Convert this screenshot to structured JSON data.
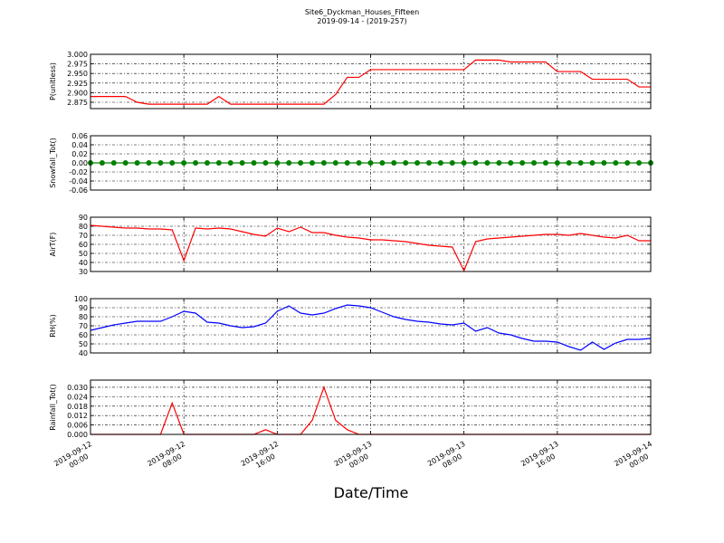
{
  "chart_data": [
    {
      "type": "line",
      "title": "Site6_Dyckman_Houses_Fifteen",
      "subtitle": "2019-09-14 - (2019-257)",
      "y_label": "P(unitless)",
      "xlim": [
        "2019-09-12 00:00",
        "2019-09-14 00:00"
      ],
      "xticks": [
        "2019-09-12 00:00",
        "2019-09-12 08:00",
        "2019-09-12 16:00",
        "2019-09-13 00:00",
        "2019-09-13 08:00",
        "2019-09-13 16:00",
        "2019-09-14 00:00"
      ],
      "ylim": [
        2.8585,
        3.0
      ],
      "yticks": [
        {
          "value": 2.875,
          "label": "2.875"
        },
        {
          "value": 2.9,
          "label": "2.900"
        },
        {
          "value": 2.925,
          "label": "2.925"
        },
        {
          "value": 2.95,
          "label": "2.950"
        },
        {
          "value": 2.975,
          "label": "2.975"
        },
        {
          "value": 3.0,
          "label": "3.000"
        }
      ],
      "grid": true,
      "color": "#ff0000",
      "marker": false,
      "x": [
        "2019-09-12 00:00",
        "2019-09-12 01:00",
        "2019-09-12 02:00",
        "2019-09-12 03:00",
        "2019-09-12 04:00",
        "2019-09-12 05:00",
        "2019-09-12 06:00",
        "2019-09-12 07:00",
        "2019-09-12 08:00",
        "2019-09-12 09:00",
        "2019-09-12 10:00",
        "2019-09-12 11:00",
        "2019-09-12 12:00",
        "2019-09-12 13:00",
        "2019-09-12 14:00",
        "2019-09-12 15:00",
        "2019-09-12 16:00",
        "2019-09-12 17:00",
        "2019-09-12 18:00",
        "2019-09-12 19:00",
        "2019-09-12 20:00",
        "2019-09-12 21:00",
        "2019-09-12 22:00",
        "2019-09-12 23:00",
        "2019-09-13 00:00",
        "2019-09-13 01:00",
        "2019-09-13 02:00",
        "2019-09-13 03:00",
        "2019-09-13 04:00",
        "2019-09-13 05:00",
        "2019-09-13 06:00",
        "2019-09-13 07:00",
        "2019-09-13 08:00",
        "2019-09-13 09:00",
        "2019-09-13 10:00",
        "2019-09-13 11:00",
        "2019-09-13 12:00",
        "2019-09-13 13:00",
        "2019-09-13 14:00",
        "2019-09-13 15:00",
        "2019-09-13 16:00",
        "2019-09-13 17:00",
        "2019-09-13 18:00",
        "2019-09-13 19:00",
        "2019-09-13 20:00",
        "2019-09-13 21:00",
        "2019-09-13 22:00",
        "2019-09-13 23:00",
        "2019-09-14 00:00"
      ],
      "values": [
        2.89,
        2.89,
        2.89,
        2.89,
        2.875,
        2.87,
        2.87,
        2.87,
        2.87,
        2.87,
        2.87,
        2.89,
        2.87,
        2.87,
        2.87,
        2.87,
        2.87,
        2.87,
        2.87,
        2.87,
        2.87,
        2.895,
        2.94,
        2.94,
        2.96,
        2.96,
        2.96,
        2.96,
        2.96,
        2.96,
        2.96,
        2.96,
        2.96,
        2.985,
        2.985,
        2.985,
        2.98,
        2.98,
        2.98,
        2.98,
        2.955,
        2.955,
        2.955,
        2.935,
        2.935,
        2.935,
        2.935,
        2.915,
        2.915
      ]
    },
    {
      "type": "line",
      "y_label": "Snowfall_Tot()",
      "xlim": [
        "2019-09-12 00:00",
        "2019-09-14 00:00"
      ],
      "xticks": [
        "2019-09-12 00:00",
        "2019-09-12 08:00",
        "2019-09-12 16:00",
        "2019-09-13 00:00",
        "2019-09-13 08:00",
        "2019-09-13 16:00",
        "2019-09-14 00:00"
      ],
      "ylim": [
        -0.06,
        0.06
      ],
      "yticks": [
        {
          "value": -0.06,
          "label": "-0.06"
        },
        {
          "value": -0.04,
          "label": "-0.04"
        },
        {
          "value": -0.02,
          "label": "-0.02"
        },
        {
          "value": 0,
          "label": "0.00"
        },
        {
          "value": 0.02,
          "label": "0.02"
        },
        {
          "value": 0.04,
          "label": "0.04"
        },
        {
          "value": 0.06,
          "label": "0.06"
        }
      ],
      "grid": true,
      "color": "#008000",
      "marker": true,
      "x": [
        "2019-09-12 00:00",
        "2019-09-12 01:00",
        "2019-09-12 02:00",
        "2019-09-12 03:00",
        "2019-09-12 04:00",
        "2019-09-12 05:00",
        "2019-09-12 06:00",
        "2019-09-12 07:00",
        "2019-09-12 08:00",
        "2019-09-12 09:00",
        "2019-09-12 10:00",
        "2019-09-12 11:00",
        "2019-09-12 12:00",
        "2019-09-12 13:00",
        "2019-09-12 14:00",
        "2019-09-12 15:00",
        "2019-09-12 16:00",
        "2019-09-12 17:00",
        "2019-09-12 18:00",
        "2019-09-12 19:00",
        "2019-09-12 20:00",
        "2019-09-12 21:00",
        "2019-09-12 22:00",
        "2019-09-12 23:00",
        "2019-09-13 00:00",
        "2019-09-13 01:00",
        "2019-09-13 02:00",
        "2019-09-13 03:00",
        "2019-09-13 04:00",
        "2019-09-13 05:00",
        "2019-09-13 06:00",
        "2019-09-13 07:00",
        "2019-09-13 08:00",
        "2019-09-13 09:00",
        "2019-09-13 10:00",
        "2019-09-13 11:00",
        "2019-09-13 12:00",
        "2019-09-13 13:00",
        "2019-09-13 14:00",
        "2019-09-13 15:00",
        "2019-09-13 16:00",
        "2019-09-13 17:00",
        "2019-09-13 18:00",
        "2019-09-13 19:00",
        "2019-09-13 20:00",
        "2019-09-13 21:00",
        "2019-09-13 22:00",
        "2019-09-13 23:00",
        "2019-09-14 00:00"
      ],
      "values": [
        0,
        0,
        0,
        0,
        0,
        0,
        0,
        0,
        0,
        0,
        0,
        0,
        0,
        0,
        0,
        0,
        0,
        0,
        0,
        0,
        0,
        0,
        0,
        0,
        0,
        0,
        0,
        0,
        0,
        0,
        0,
        0,
        0,
        0,
        0,
        0,
        0,
        0,
        0,
        0,
        0,
        0,
        0,
        0,
        0,
        0,
        0,
        0,
        0
      ]
    },
    {
      "type": "line",
      "y_label": "AirT(F)",
      "xlim": [
        "2019-09-12 00:00",
        "2019-09-14 00:00"
      ],
      "xticks": [
        "2019-09-12 00:00",
        "2019-09-12 08:00",
        "2019-09-12 16:00",
        "2019-09-13 00:00",
        "2019-09-13 08:00",
        "2019-09-13 16:00",
        "2019-09-14 00:00"
      ],
      "ylim": [
        30,
        90
      ],
      "yticks": [
        30,
        40,
        50,
        60,
        70,
        80,
        90
      ],
      "grid": true,
      "color": "#ff0000",
      "marker": false,
      "x": [
        "2019-09-12 00:00",
        "2019-09-12 01:00",
        "2019-09-12 02:00",
        "2019-09-12 03:00",
        "2019-09-12 04:00",
        "2019-09-12 05:00",
        "2019-09-12 06:00",
        "2019-09-12 07:00",
        "2019-09-12 08:00",
        "2019-09-12 09:00",
        "2019-09-12 10:00",
        "2019-09-12 11:00",
        "2019-09-12 12:00",
        "2019-09-12 13:00",
        "2019-09-12 14:00",
        "2019-09-12 15:00",
        "2019-09-12 16:00",
        "2019-09-12 17:00",
        "2019-09-12 18:00",
        "2019-09-12 19:00",
        "2019-09-12 20:00",
        "2019-09-12 21:00",
        "2019-09-12 22:00",
        "2019-09-12 23:00",
        "2019-09-13 00:00",
        "2019-09-13 01:00",
        "2019-09-13 02:00",
        "2019-09-13 03:00",
        "2019-09-13 04:00",
        "2019-09-13 05:00",
        "2019-09-13 06:00",
        "2019-09-13 07:00",
        "2019-09-13 08:00",
        "2019-09-13 09:00",
        "2019-09-13 10:00",
        "2019-09-13 11:00",
        "2019-09-13 12:00",
        "2019-09-13 13:00",
        "2019-09-13 14:00",
        "2019-09-13 15:00",
        "2019-09-13 16:00",
        "2019-09-13 17:00",
        "2019-09-13 18:00",
        "2019-09-13 19:00",
        "2019-09-13 20:00",
        "2019-09-13 21:00",
        "2019-09-13 22:00",
        "2019-09-13 23:00",
        "2019-09-14 00:00"
      ],
      "values": [
        81,
        80,
        79,
        78,
        78,
        77,
        77,
        76,
        42,
        78,
        77,
        78,
        77,
        74,
        71,
        69,
        78,
        74,
        79,
        73,
        73,
        70,
        68,
        67,
        65,
        65,
        64,
        63,
        61,
        59,
        58,
        57,
        31,
        63,
        66,
        67,
        68,
        69,
        70,
        71,
        71,
        70,
        72,
        70,
        68,
        67,
        70,
        64,
        64
      ]
    },
    {
      "type": "line",
      "y_label": "RH(%)",
      "xlim": [
        "2019-09-12 00:00",
        "2019-09-14 00:00"
      ],
      "xticks": [
        "2019-09-12 00:00",
        "2019-09-12 08:00",
        "2019-09-12 16:00",
        "2019-09-13 00:00",
        "2019-09-13 08:00",
        "2019-09-13 16:00",
        "2019-09-14 00:00"
      ],
      "ylim": [
        40,
        100
      ],
      "yticks": [
        40,
        50,
        60,
        70,
        80,
        90,
        100
      ],
      "grid": true,
      "color": "#0000ff",
      "marker": false,
      "x": [
        "2019-09-12 00:00",
        "2019-09-12 01:00",
        "2019-09-12 02:00",
        "2019-09-12 03:00",
        "2019-09-12 04:00",
        "2019-09-12 05:00",
        "2019-09-12 06:00",
        "2019-09-12 07:00",
        "2019-09-12 08:00",
        "2019-09-12 09:00",
        "2019-09-12 10:00",
        "2019-09-12 11:00",
        "2019-09-12 12:00",
        "2019-09-12 13:00",
        "2019-09-12 14:00",
        "2019-09-12 15:00",
        "2019-09-12 16:00",
        "2019-09-12 17:00",
        "2019-09-12 18:00",
        "2019-09-12 19:00",
        "2019-09-12 20:00",
        "2019-09-12 21:00",
        "2019-09-12 22:00",
        "2019-09-12 23:00",
        "2019-09-13 00:00",
        "2019-09-13 01:00",
        "2019-09-13 02:00",
        "2019-09-13 03:00",
        "2019-09-13 04:00",
        "2019-09-13 05:00",
        "2019-09-13 06:00",
        "2019-09-13 07:00",
        "2019-09-13 08:00",
        "2019-09-13 09:00",
        "2019-09-13 10:00",
        "2019-09-13 11:00",
        "2019-09-13 12:00",
        "2019-09-13 13:00",
        "2019-09-13 14:00",
        "2019-09-13 15:00",
        "2019-09-13 16:00",
        "2019-09-13 17:00",
        "2019-09-13 18:00",
        "2019-09-13 19:00",
        "2019-09-13 20:00",
        "2019-09-13 21:00",
        "2019-09-13 22:00",
        "2019-09-13 23:00",
        "2019-09-14 00:00"
      ],
      "values": [
        65,
        68,
        71,
        73,
        75,
        75,
        75,
        80,
        86,
        84,
        74,
        73,
        70,
        68,
        69,
        73,
        86,
        92,
        84,
        82,
        84,
        89,
        93,
        92,
        90,
        85,
        80,
        77,
        75,
        74,
        72,
        71,
        73,
        64,
        68,
        62,
        60,
        56,
        53,
        53,
        52,
        47,
        43,
        52,
        44,
        51,
        55,
        55,
        56
      ]
    },
    {
      "type": "line",
      "y_label": "Rainfall_Tot()",
      "x_label": "Date/Time",
      "xlim": [
        "2019-09-12 00:00",
        "2019-09-14 00:00"
      ],
      "xticks": [
        "2019-09-12 00:00",
        "2019-09-12 08:00",
        "2019-09-12 16:00",
        "2019-09-13 00:00",
        "2019-09-13 08:00",
        "2019-09-13 16:00",
        "2019-09-14 00:00"
      ],
      "ylim": [
        0,
        0.0346
      ],
      "yticks": [
        {
          "value": 0,
          "label": "0.000"
        },
        {
          "value": 0.006,
          "label": "0.006"
        },
        {
          "value": 0.012,
          "label": "0.012"
        },
        {
          "value": 0.018,
          "label": "0.018"
        },
        {
          "value": 0.024,
          "label": "0.024"
        },
        {
          "value": 0.03,
          "label": "0.030"
        }
      ],
      "grid": true,
      "color": "#ff0000",
      "marker": false,
      "x": [
        "2019-09-12 00:00",
        "2019-09-12 01:00",
        "2019-09-12 02:00",
        "2019-09-12 03:00",
        "2019-09-12 04:00",
        "2019-09-12 05:00",
        "2019-09-12 06:00",
        "2019-09-12 07:00",
        "2019-09-12 08:00",
        "2019-09-12 09:00",
        "2019-09-12 10:00",
        "2019-09-12 11:00",
        "2019-09-12 12:00",
        "2019-09-12 13:00",
        "2019-09-12 14:00",
        "2019-09-12 15:00",
        "2019-09-12 16:00",
        "2019-09-12 17:00",
        "2019-09-12 18:00",
        "2019-09-12 19:00",
        "2019-09-12 20:00",
        "2019-09-12 21:00",
        "2019-09-12 22:00",
        "2019-09-12 23:00",
        "2019-09-13 00:00",
        "2019-09-13 01:00",
        "2019-09-13 02:00",
        "2019-09-13 03:00",
        "2019-09-13 04:00",
        "2019-09-13 05:00",
        "2019-09-13 06:00",
        "2019-09-13 07:00",
        "2019-09-13 08:00",
        "2019-09-13 09:00",
        "2019-09-13 10:00",
        "2019-09-13 11:00",
        "2019-09-13 12:00",
        "2019-09-13 13:00",
        "2019-09-13 14:00",
        "2019-09-13 15:00",
        "2019-09-13 16:00",
        "2019-09-13 17:00",
        "2019-09-13 18:00",
        "2019-09-13 19:00",
        "2019-09-13 20:00",
        "2019-09-13 21:00",
        "2019-09-13 22:00",
        "2019-09-13 23:00",
        "2019-09-14 00:00"
      ],
      "values": [
        0,
        0,
        0,
        0,
        0,
        0,
        0,
        0.02,
        0,
        0,
        0,
        0,
        0,
        0,
        0,
        0.003,
        0,
        0,
        0,
        0.009,
        0.03,
        0.009,
        0.003,
        0,
        0,
        0,
        0,
        0,
        0,
        0,
        0,
        0,
        0,
        0,
        0,
        0,
        0,
        0,
        0,
        0,
        0,
        0,
        0,
        0,
        0,
        0,
        0,
        0,
        0
      ]
    }
  ]
}
